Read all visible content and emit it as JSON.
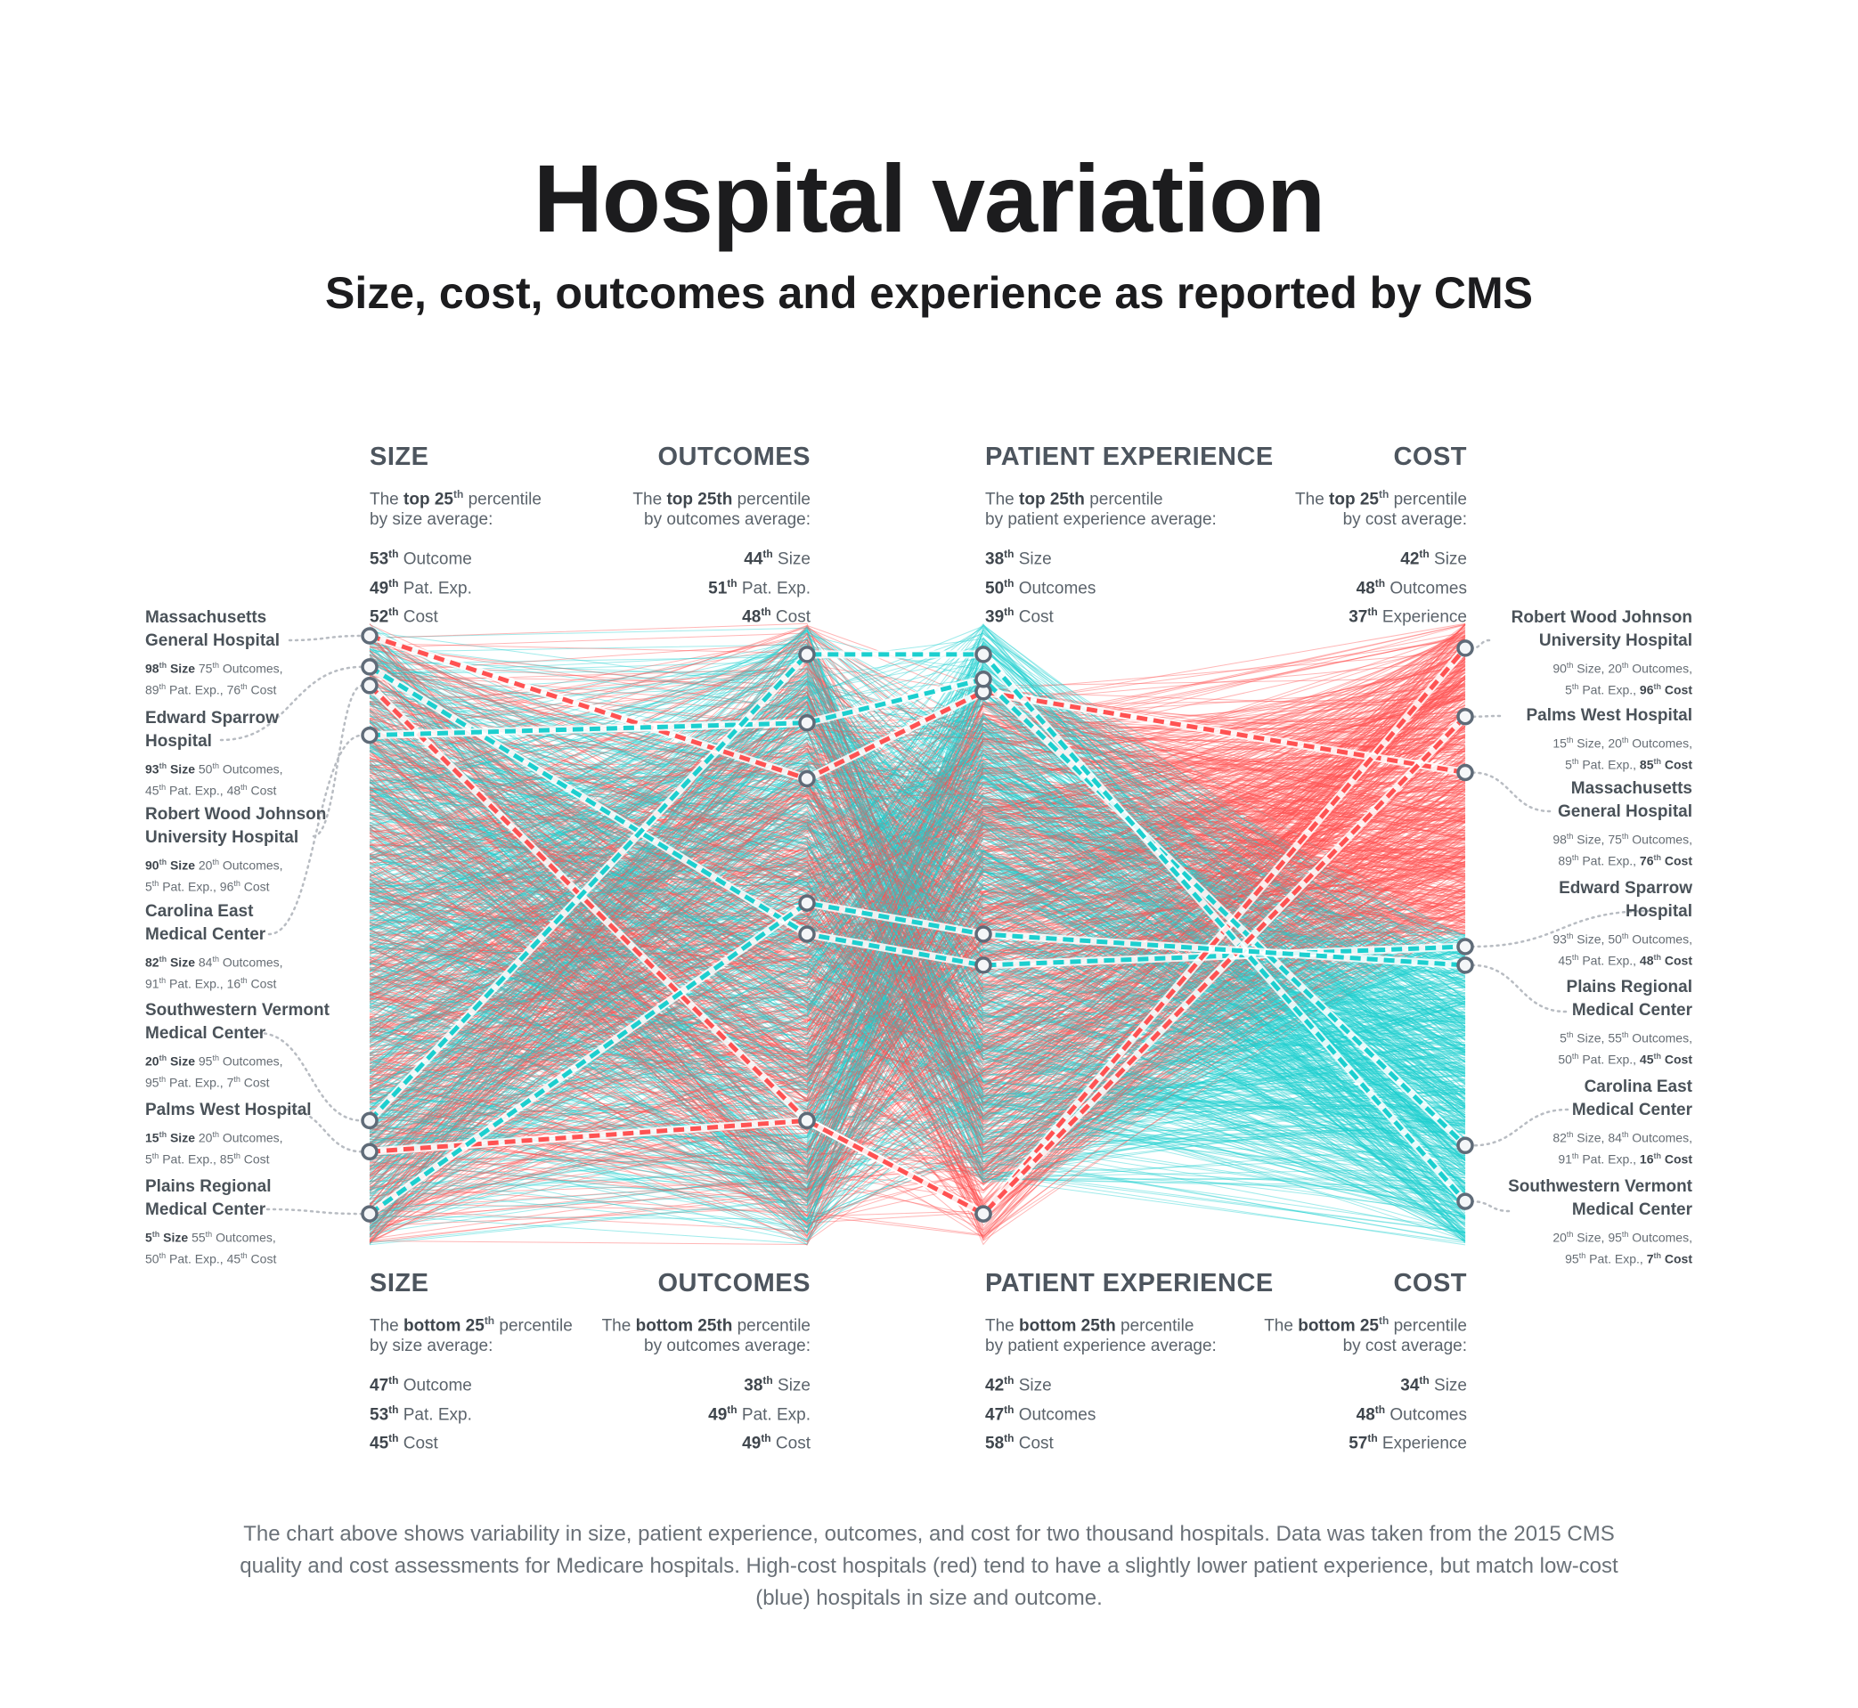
{
  "title": "Hospital variation",
  "subtitle": "Size, cost, outcomes and experience as reported by CMS",
  "colors": {
    "high_cost": "#ff5252",
    "low_cost": "#1ccfcf",
    "node_stroke": "#5f6b78",
    "leader": "#b8bcc2"
  },
  "axes_top": [
    {
      "title": "SIZE",
      "desc_pre": "The ",
      "desc_bold": "top 25",
      "desc_sup": "th",
      "desc_post": " percentile",
      "desc_line2": "by size average:",
      "stats": [
        {
          "value": "53",
          "sup": "th",
          "label": " Outcome"
        },
        {
          "value": "49",
          "sup": "th",
          "label": " Pat. Exp."
        },
        {
          "value": "52",
          "sup": "th",
          "label": " Cost"
        }
      ]
    },
    {
      "title": "OUTCOMES",
      "desc_pre": "The ",
      "desc_bold": "top 25th",
      "desc_sup": "",
      "desc_post": " percentile",
      "desc_line2": "by outcomes average:",
      "stats": [
        {
          "value": "44",
          "sup": "th",
          "label": " Size"
        },
        {
          "value": "51",
          "sup": "th",
          "label": " Pat. Exp."
        },
        {
          "value": "48",
          "sup": "th",
          "label": " Cost"
        }
      ]
    },
    {
      "title": "PATIENT EXPERIENCE",
      "desc_pre": "The ",
      "desc_bold": "top 25th",
      "desc_sup": "",
      "desc_post": " percentile",
      "desc_line2": "by patient experience average:",
      "stats": [
        {
          "value": "38",
          "sup": "th",
          "label": " Size"
        },
        {
          "value": "50",
          "sup": "th",
          "label": " Outcomes"
        },
        {
          "value": "39",
          "sup": "th",
          "label": " Cost"
        }
      ]
    },
    {
      "title": "COST",
      "desc_pre": "The ",
      "desc_bold": "top 25",
      "desc_sup": "th",
      "desc_post": " percentile",
      "desc_line2": "by cost average:",
      "stats": [
        {
          "value": "42",
          "sup": "th",
          "label": " Size"
        },
        {
          "value": "48",
          "sup": "th",
          "label": " Outcomes"
        },
        {
          "value": "37",
          "sup": "th",
          "label": " Experience"
        }
      ]
    }
  ],
  "axes_bottom": [
    {
      "title": "SIZE",
      "desc_pre": "The ",
      "desc_bold": "bottom 25",
      "desc_sup": "th",
      "desc_post": " percentile",
      "desc_line2": "by size average:",
      "stats": [
        {
          "value": "47",
          "sup": "th",
          "label": " Outcome"
        },
        {
          "value": "53",
          "sup": "th",
          "label": " Pat. Exp."
        },
        {
          "value": "45",
          "sup": "th",
          "label": " Cost"
        }
      ]
    },
    {
      "title": "OUTCOMES",
      "desc_pre": "The ",
      "desc_bold": "bottom 25th",
      "desc_sup": "",
      "desc_post": " percentile",
      "desc_line2": "by outcomes average:",
      "stats": [
        {
          "value": "38",
          "sup": "th",
          "label": " Size"
        },
        {
          "value": "49",
          "sup": "th",
          "label": " Pat. Exp."
        },
        {
          "value": "49",
          "sup": "th",
          "label": " Cost"
        }
      ]
    },
    {
      "title": "PATIENT EXPERIENCE",
      "desc_pre": "The ",
      "desc_bold": "bottom 25th",
      "desc_sup": "",
      "desc_post": " percentile",
      "desc_line2": "by patient experience average:",
      "stats": [
        {
          "value": "42",
          "sup": "th",
          "label": " Size"
        },
        {
          "value": "47",
          "sup": "th",
          "label": " Outcomes"
        },
        {
          "value": "58",
          "sup": "th",
          "label": " Cost"
        }
      ]
    },
    {
      "title": "COST",
      "desc_pre": "The ",
      "desc_bold": "bottom 25",
      "desc_sup": "th",
      "desc_post": " percentile",
      "desc_line2": "by cost average:",
      "stats": [
        {
          "value": "34",
          "sup": "th",
          "label": " Size"
        },
        {
          "value": "48",
          "sup": "th",
          "label": " Outcomes"
        },
        {
          "value": "57",
          "sup": "th",
          "label": " Experience"
        }
      ]
    }
  ],
  "hospitals_left": [
    {
      "name_lines": [
        "Massachusetts",
        "General Hospital"
      ],
      "stats": [
        [
          {
            "v": "98",
            "l": " Size",
            "b": true
          },
          {
            "v": "75",
            "l": " Outcomes,",
            "b": false
          }
        ],
        [
          {
            "v": "89",
            "l": " Pat. Exp.,",
            "b": false
          },
          {
            "v": "76",
            "l": " Cost",
            "b": false
          }
        ]
      ]
    },
    {
      "name_lines": [
        "Edward Sparrow",
        "Hospital"
      ],
      "stats": [
        [
          {
            "v": "93",
            "l": " Size",
            "b": true
          },
          {
            "v": "50",
            "l": " Outcomes,",
            "b": false
          }
        ],
        [
          {
            "v": "45",
            "l": " Pat. Exp.,",
            "b": false
          },
          {
            "v": "48",
            "l": " Cost",
            "b": false
          }
        ]
      ]
    },
    {
      "name_lines": [
        "Robert Wood Johnson",
        "University Hospital"
      ],
      "stats": [
        [
          {
            "v": "90",
            "l": " Size",
            "b": true
          },
          {
            "v": "20",
            "l": " Outcomes,",
            "b": false
          }
        ],
        [
          {
            "v": "5",
            "l": " Pat. Exp.,",
            "b": false
          },
          {
            "v": "96",
            "l": " Cost",
            "b": false
          }
        ]
      ]
    },
    {
      "name_lines": [
        "Carolina East",
        "Medical Center"
      ],
      "stats": [
        [
          {
            "v": "82",
            "l": " Size",
            "b": true
          },
          {
            "v": "84",
            "l": " Outcomes,",
            "b": false
          }
        ],
        [
          {
            "v": "91",
            "l": " Pat. Exp.,",
            "b": false
          },
          {
            "v": "16",
            "l": " Cost",
            "b": false
          }
        ]
      ]
    },
    {
      "name_lines": [
        "Southwestern Vermont",
        "Medical Center"
      ],
      "stats": [
        [
          {
            "v": "20",
            "l": " Size",
            "b": true
          },
          {
            "v": "95",
            "l": " Outcomes,",
            "b": false
          }
        ],
        [
          {
            "v": "95",
            "l": " Pat. Exp.,",
            "b": false
          },
          {
            "v": "7",
            "l": " Cost",
            "b": false
          }
        ]
      ]
    },
    {
      "name_lines": [
        "Palms West Hospital"
      ],
      "stats": [
        [
          {
            "v": "15",
            "l": " Size",
            "b": true
          },
          {
            "v": "20",
            "l": " Outcomes,",
            "b": false
          }
        ],
        [
          {
            "v": "5",
            "l": " Pat. Exp.,",
            "b": false
          },
          {
            "v": "85",
            "l": " Cost",
            "b": false
          }
        ]
      ]
    },
    {
      "name_lines": [
        "Plains Regional",
        "Medical Center"
      ],
      "stats": [
        [
          {
            "v": "5",
            "l": " Size",
            "b": true
          },
          {
            "v": "55",
            "l": " Outcomes,",
            "b": false
          }
        ],
        [
          {
            "v": "50",
            "l": " Pat. Exp.,",
            "b": false
          },
          {
            "v": "45",
            "l": " Cost",
            "b": false
          }
        ]
      ]
    }
  ],
  "hospitals_right": [
    {
      "name_lines": [
        "Robert Wood Johnson",
        "University Hospital"
      ],
      "stats": [
        [
          {
            "v": "90",
            "l": " Size,",
            "b": false
          },
          {
            "v": "20",
            "l": " Outcomes,",
            "b": false
          }
        ],
        [
          {
            "v": "5",
            "l": " Pat. Exp.,",
            "b": false
          },
          {
            "v": "96",
            "l": " Cost",
            "b": true
          }
        ]
      ]
    },
    {
      "name_lines": [
        "Palms West Hospital"
      ],
      "stats": [
        [
          {
            "v": "15",
            "l": " Size,",
            "b": false
          },
          {
            "v": "20",
            "l": " Outcomes,",
            "b": false
          }
        ],
        [
          {
            "v": "5",
            "l": " Pat. Exp.,",
            "b": false
          },
          {
            "v": "85",
            "l": " Cost",
            "b": true
          }
        ]
      ]
    },
    {
      "name_lines": [
        "Massachusetts",
        "General Hospital"
      ],
      "stats": [
        [
          {
            "v": "98",
            "l": " Size,",
            "b": false
          },
          {
            "v": "75",
            "l": " Outcomes,",
            "b": false
          }
        ],
        [
          {
            "v": "89",
            "l": " Pat. Exp.,",
            "b": false
          },
          {
            "v": "76",
            "l": " Cost",
            "b": true
          }
        ]
      ]
    },
    {
      "name_lines": [
        "Edward Sparrow",
        "Hospital"
      ],
      "stats": [
        [
          {
            "v": "93",
            "l": " Size,",
            "b": false
          },
          {
            "v": "50",
            "l": " Outcomes,",
            "b": false
          }
        ],
        [
          {
            "v": "45",
            "l": " Pat. Exp.,",
            "b": false
          },
          {
            "v": "48",
            "l": " Cost",
            "b": true
          }
        ]
      ]
    },
    {
      "name_lines": [
        "Plains Regional",
        "Medical Center"
      ],
      "stats": [
        [
          {
            "v": "5",
            "l": " Size,",
            "b": false
          },
          {
            "v": "55",
            "l": " Outcomes,",
            "b": false
          }
        ],
        [
          {
            "v": "50",
            "l": " Pat. Exp.,",
            "b": false
          },
          {
            "v": "45",
            "l": " Cost",
            "b": true
          }
        ]
      ]
    },
    {
      "name_lines": [
        "Carolina East",
        "Medical Center"
      ],
      "stats": [
        [
          {
            "v": "82",
            "l": " Size,",
            "b": false
          },
          {
            "v": "84",
            "l": " Outcomes,",
            "b": false
          }
        ],
        [
          {
            "v": "91",
            "l": " Pat. Exp.,",
            "b": false
          },
          {
            "v": "16",
            "l": " Cost",
            "b": true
          }
        ]
      ]
    },
    {
      "name_lines": [
        "Southwestern Vermont",
        "Medical Center"
      ],
      "stats": [
        [
          {
            "v": "20",
            "l": " Size,",
            "b": false
          },
          {
            "v": "95",
            "l": " Outcomes,",
            "b": false
          }
        ],
        [
          {
            "v": "95",
            "l": " Pat. Exp.,",
            "b": false
          },
          {
            "v": "7",
            "l": " Cost",
            "b": true
          }
        ]
      ]
    }
  ],
  "chart_data": {
    "type": "parallel-coordinates",
    "axes": [
      "Size",
      "Outcomes",
      "Patient Experience",
      "Cost"
    ],
    "scale": "percentile",
    "range": [
      0,
      100
    ],
    "background_lines": {
      "count": 2000,
      "colored_by": "Cost",
      "high_cost_color": "#ff5252",
      "low_cost_color": "#1ccfcf"
    },
    "highlighted": [
      {
        "name": "Massachusetts General Hospital",
        "values": [
          98,
          75,
          89,
          76
        ]
      },
      {
        "name": "Edward Sparrow Hospital",
        "values": [
          93,
          50,
          45,
          48
        ]
      },
      {
        "name": "Robert Wood Johnson University Hospital",
        "values": [
          90,
          20,
          5,
          96
        ]
      },
      {
        "name": "Carolina East Medical Center",
        "values": [
          82,
          84,
          91,
          16
        ]
      },
      {
        "name": "Southwestern Vermont Medical Center",
        "values": [
          20,
          95,
          95,
          7
        ]
      },
      {
        "name": "Palms West Hospital",
        "values": [
          15,
          20,
          5,
          85
        ]
      },
      {
        "name": "Plains Regional Medical Center",
        "values": [
          5,
          55,
          50,
          45
        ]
      }
    ]
  },
  "caption": "The chart above shows variability in size, patient experience, outcomes, and cost for two thousand hospitals. Data was taken from the 2015 CMS quality and cost assessments for Medicare hospitals. High-cost hospitals (red) tend to have a slightly lower patient experience, but match low-cost (blue) hospitals in size and outcome."
}
